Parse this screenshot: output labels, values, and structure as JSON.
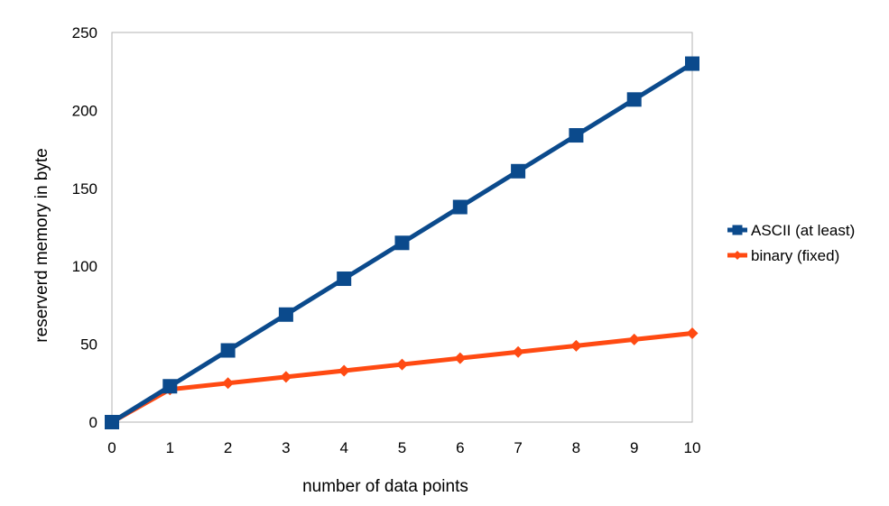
{
  "chart_data": {
    "type": "line",
    "title": "",
    "xlabel": "number of data points",
    "ylabel": "reserverd memory in byte",
    "x": [
      0,
      1,
      2,
      3,
      4,
      5,
      6,
      7,
      8,
      9,
      10
    ],
    "x_tick_labels": [
      "0",
      "1",
      "2",
      "3",
      "4",
      "5",
      "6",
      "7",
      "8",
      "9",
      "10"
    ],
    "y_tick_labels": [
      "0",
      "50",
      "100",
      "150",
      "200",
      "250"
    ],
    "ylim": [
      0,
      250
    ],
    "xlim": [
      0,
      10
    ],
    "grid": false,
    "legend_position": "right",
    "series": [
      {
        "name": "ASCII (at least)",
        "marker": "square",
        "color": "#0b4a8c",
        "values": [
          0,
          23,
          46,
          69,
          92,
          115,
          138,
          161,
          184,
          207,
          230
        ]
      },
      {
        "name": "binary (fixed)",
        "marker": "diamond",
        "color": "#ff4a12",
        "values": [
          0,
          21,
          25,
          29,
          33,
          37,
          41,
          45,
          49,
          53,
          57
        ]
      }
    ]
  }
}
